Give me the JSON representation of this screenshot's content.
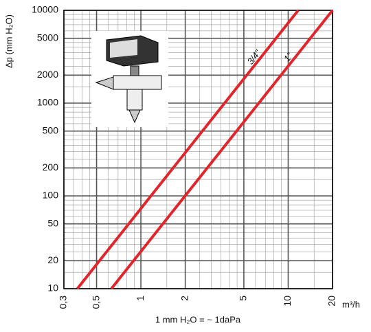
{
  "chart_data": {
    "type": "line",
    "y_label": "Δp (mm H₂O)",
    "x_unit": "m³/h",
    "note": "1 mm H₂O = ~ 1daPa",
    "log_x": true,
    "log_y": true,
    "grid": true,
    "xlim": [
      0.3,
      20
    ],
    "ylim": [
      10,
      10000
    ],
    "xticks": [
      {
        "value": 0.3,
        "label": "0,3"
      },
      {
        "value": 0.5,
        "label": "0,5"
      },
      1,
      2,
      5,
      10,
      20
    ],
    "yticks": [
      10,
      20,
      50,
      100,
      200,
      500,
      1000,
      2000,
      5000,
      10000
    ],
    "series": [
      {
        "name": "3/4\"",
        "color": "#e0262b",
        "x": [
          0.37,
          11.7
        ],
        "values": [
          10,
          10000
        ]
      },
      {
        "name": "1\"",
        "color": "#e0262b",
        "x": [
          0.63,
          20
        ],
        "values": [
          10,
          10000
        ]
      }
    ]
  }
}
